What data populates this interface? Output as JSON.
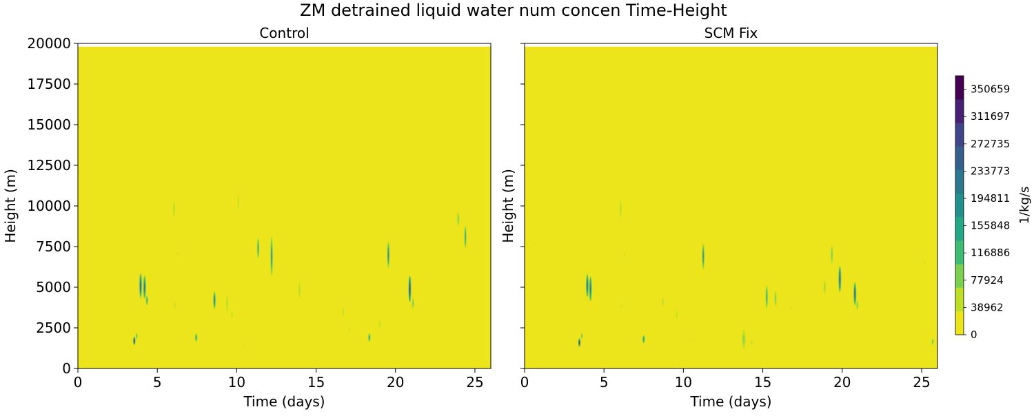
{
  "figure": {
    "suptitle": "ZM detrained liquid water num concen Time-Height"
  },
  "colorbar": {
    "label": "1/kg/s",
    "ticks": [
      "0",
      "38962",
      "77924",
      "116886",
      "155848",
      "194811",
      "233773",
      "272735",
      "311697",
      "350659"
    ],
    "vmin": 0,
    "vmax": 370000,
    "colors": [
      "#ece51b",
      "#bddf26",
      "#7ad151",
      "#3fbc73",
      "#22a884",
      "#21908d",
      "#2a788e",
      "#355f8d",
      "#414487",
      "#482173",
      "#440154"
    ]
  },
  "chart_data": [
    {
      "type": "heatmap",
      "title": "Control",
      "xlabel": "Time (days)",
      "ylabel": "Height (m)",
      "xlim": [
        0,
        26
      ],
      "ylim": [
        0,
        20000
      ],
      "data_top": 19800,
      "xticks": [
        "0",
        "5",
        "10",
        "15",
        "20",
        "25"
      ],
      "yticks": [
        "0",
        "2500",
        "5000",
        "7500",
        "10000",
        "12500",
        "15000",
        "17500",
        "20000"
      ],
      "background_value": 0,
      "features": [
        {
          "t": 3.55,
          "z": 1700,
          "dt": 0.06,
          "dz": 250,
          "v": 360000
        },
        {
          "t": 3.7,
          "z": 2000,
          "dt": 0.05,
          "dz": 200,
          "v": 150000
        },
        {
          "t": 3.95,
          "z": 5100,
          "dt": 0.07,
          "dz": 750,
          "v": 280000
        },
        {
          "t": 4.2,
          "z": 5000,
          "dt": 0.07,
          "dz": 700,
          "v": 260000
        },
        {
          "t": 4.35,
          "z": 4200,
          "dt": 0.05,
          "dz": 300,
          "v": 200000
        },
        {
          "t": 6.05,
          "z": 9800,
          "dt": 0.04,
          "dz": 500,
          "v": 80000
        },
        {
          "t": 6.3,
          "z": 7100,
          "dt": 0.04,
          "dz": 200,
          "v": 50000
        },
        {
          "t": 6.1,
          "z": 3900,
          "dt": 0.04,
          "dz": 250,
          "v": 60000
        },
        {
          "t": 7.45,
          "z": 1900,
          "dt": 0.06,
          "dz": 250,
          "v": 170000
        },
        {
          "t": 8.6,
          "z": 4200,
          "dt": 0.07,
          "dz": 550,
          "v": 220000
        },
        {
          "t": 9.4,
          "z": 4000,
          "dt": 0.04,
          "dz": 500,
          "v": 80000
        },
        {
          "t": 9.7,
          "z": 3300,
          "dt": 0.03,
          "dz": 250,
          "v": 60000
        },
        {
          "t": 10.1,
          "z": 10200,
          "dt": 0.04,
          "dz": 550,
          "v": 60000
        },
        {
          "t": 10.5,
          "z": 1500,
          "dt": 0.03,
          "dz": 150,
          "v": 50000
        },
        {
          "t": 11.35,
          "z": 7400,
          "dt": 0.05,
          "dz": 600,
          "v": 190000
        },
        {
          "t": 12.2,
          "z": 6900,
          "dt": 0.06,
          "dz": 1200,
          "v": 210000
        },
        {
          "t": 13.95,
          "z": 4800,
          "dt": 0.04,
          "dz": 450,
          "v": 80000
        },
        {
          "t": 16.7,
          "z": 3500,
          "dt": 0.04,
          "dz": 400,
          "v": 60000
        },
        {
          "t": 17.1,
          "z": 2400,
          "dt": 0.03,
          "dz": 250,
          "v": 50000
        },
        {
          "t": 18.35,
          "z": 1900,
          "dt": 0.06,
          "dz": 250,
          "v": 180000
        },
        {
          "t": 19.0,
          "z": 2700,
          "dt": 0.04,
          "dz": 350,
          "v": 60000
        },
        {
          "t": 19.55,
          "z": 7000,
          "dt": 0.06,
          "dz": 800,
          "v": 230000
        },
        {
          "t": 20.9,
          "z": 4900,
          "dt": 0.07,
          "dz": 800,
          "v": 310000
        },
        {
          "t": 21.1,
          "z": 4000,
          "dt": 0.04,
          "dz": 350,
          "v": 120000
        },
        {
          "t": 23.95,
          "z": 9200,
          "dt": 0.04,
          "dz": 450,
          "v": 120000
        },
        {
          "t": 24.4,
          "z": 8100,
          "dt": 0.05,
          "dz": 700,
          "v": 190000
        }
      ]
    },
    {
      "type": "heatmap",
      "title": "SCM Fix",
      "xlabel": "Time (days)",
      "ylabel": "Height (m)",
      "xlim": [
        0,
        26
      ],
      "ylim": [
        0,
        20000
      ],
      "data_top": 19800,
      "xticks": [
        "0",
        "5",
        "10",
        "15",
        "20",
        "25"
      ],
      "yticks": [
        "0",
        "2500",
        "5000",
        "7500",
        "10000",
        "12500",
        "15000",
        "17500",
        "20000"
      ],
      "background_value": 0,
      "features": [
        {
          "t": 3.45,
          "z": 1600,
          "dt": 0.06,
          "dz": 250,
          "v": 360000
        },
        {
          "t": 3.6,
          "z": 2000,
          "dt": 0.05,
          "dz": 200,
          "v": 150000
        },
        {
          "t": 3.95,
          "z": 5100,
          "dt": 0.07,
          "dz": 700,
          "v": 260000
        },
        {
          "t": 4.15,
          "z": 4900,
          "dt": 0.07,
          "dz": 750,
          "v": 240000
        },
        {
          "t": 6.05,
          "z": 9800,
          "dt": 0.04,
          "dz": 500,
          "v": 80000
        },
        {
          "t": 6.3,
          "z": 7000,
          "dt": 0.03,
          "dz": 200,
          "v": 50000
        },
        {
          "t": 6.1,
          "z": 3800,
          "dt": 0.03,
          "dz": 250,
          "v": 50000
        },
        {
          "t": 7.5,
          "z": 1800,
          "dt": 0.07,
          "dz": 250,
          "v": 200000
        },
        {
          "t": 8.7,
          "z": 4100,
          "dt": 0.04,
          "dz": 350,
          "v": 70000
        },
        {
          "t": 9.6,
          "z": 3300,
          "dt": 0.04,
          "dz": 350,
          "v": 60000
        },
        {
          "t": 10.7,
          "z": 1700,
          "dt": 0.03,
          "dz": 150,
          "v": 50000
        },
        {
          "t": 11.25,
          "z": 6900,
          "dt": 0.06,
          "dz": 800,
          "v": 210000
        },
        {
          "t": 13.8,
          "z": 1800,
          "dt": 0.1,
          "dz": 600,
          "v": 90000
        },
        {
          "t": 14.3,
          "z": 1600,
          "dt": 0.05,
          "dz": 250,
          "v": 70000
        },
        {
          "t": 15.25,
          "z": 4400,
          "dt": 0.05,
          "dz": 700,
          "v": 180000
        },
        {
          "t": 15.8,
          "z": 4300,
          "dt": 0.04,
          "dz": 500,
          "v": 110000
        },
        {
          "t": 16.8,
          "z": 3700,
          "dt": 0.03,
          "dz": 200,
          "v": 50000
        },
        {
          "t": 18.9,
          "z": 5000,
          "dt": 0.04,
          "dz": 450,
          "v": 90000
        },
        {
          "t": 19.35,
          "z": 7000,
          "dt": 0.05,
          "dz": 600,
          "v": 120000
        },
        {
          "t": 19.85,
          "z": 5500,
          "dt": 0.07,
          "dz": 800,
          "v": 270000
        },
        {
          "t": 20.8,
          "z": 4600,
          "dt": 0.07,
          "dz": 700,
          "v": 280000
        },
        {
          "t": 20.95,
          "z": 3900,
          "dt": 0.04,
          "dz": 300,
          "v": 110000
        },
        {
          "t": 25.7,
          "z": 1650,
          "dt": 0.05,
          "dz": 200,
          "v": 150000
        },
        {
          "t": 25.2,
          "z": 6500,
          "dt": 0.03,
          "dz": 200,
          "v": 50000
        }
      ]
    }
  ]
}
